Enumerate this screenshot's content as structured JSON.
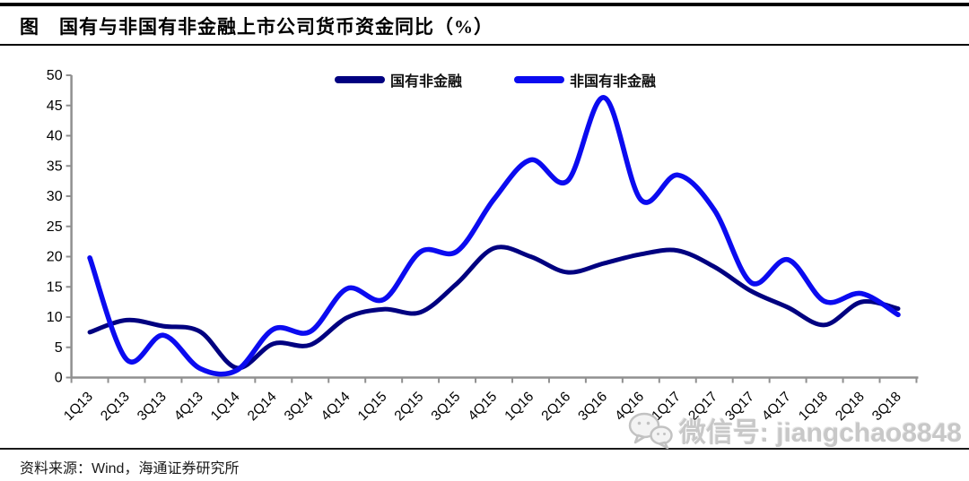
{
  "header": {
    "title": "图　国有与非国有非金融上市公司货币资金同比（%）"
  },
  "chart_data": {
    "type": "line",
    "title": "国有与非国有非金融上市公司货币资金同比（%）",
    "categories": [
      "1Q13",
      "2Q13",
      "3Q13",
      "4Q13",
      "1Q14",
      "2Q14",
      "3Q14",
      "4Q14",
      "1Q15",
      "2Q15",
      "3Q15",
      "4Q15",
      "1Q16",
      "2Q16",
      "3Q16",
      "4Q16",
      "1Q17",
      "2Q17",
      "3Q17",
      "4Q17",
      "1Q18",
      "2Q18",
      "3Q18"
    ],
    "series": [
      {
        "name": "国有非金融",
        "color": "#000080",
        "values": [
          7.5,
          9.5,
          8.5,
          7.6,
          1.6,
          5.6,
          5.4,
          9.9,
          11.3,
          10.8,
          15.6,
          21.4,
          20.0,
          17.4,
          18.9,
          20.4,
          21.0,
          18.3,
          14.3,
          11.6,
          8.7,
          12.5,
          11.4
        ]
      },
      {
        "name": "非国有非金融",
        "color": "#0b0bf0",
        "values": [
          19.8,
          3.0,
          7.0,
          1.5,
          1.2,
          8.0,
          7.6,
          14.7,
          12.9,
          20.8,
          20.9,
          29.5,
          36.0,
          32.5,
          46.3,
          29.4,
          33.5,
          27.7,
          15.7,
          19.5,
          12.6,
          13.9,
          10.4
        ]
      }
    ],
    "ylim": [
      0,
      50
    ],
    "ytick_step": 5,
    "grid": false,
    "smoothed": true,
    "legend_position": "top-center",
    "axis_color": "#909090",
    "tick_label_color": "#000000"
  },
  "footer": {
    "source": "资料来源：Wind，海通证券研究所"
  },
  "watermark": {
    "icon": "wechat-icon",
    "text": "微信号: jiangchao8848"
  }
}
